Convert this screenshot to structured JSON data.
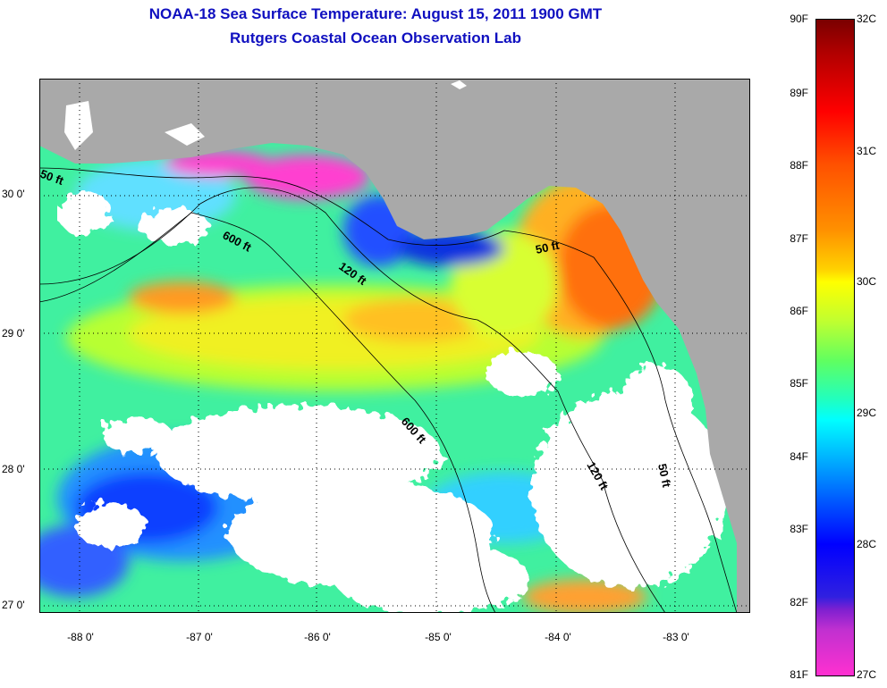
{
  "title": {
    "line1": "NOAA-18 Sea Surface Temperature:  August 15, 2011 1900 GMT",
    "line2": "Rutgers Coastal Ocean Observation Lab"
  },
  "axes": {
    "lat_labels": [
      "30 0'",
      "29 0'",
      "28 0'",
      "27 0'"
    ],
    "lon_labels": [
      "-88 0'",
      "-87 0'",
      "-86 0'",
      "-85 0'",
      "-84 0'",
      "-83 0'"
    ]
  },
  "colorbar": {
    "fahrenheit": [
      "90F",
      "89F",
      "88F",
      "87F",
      "86F",
      "85F",
      "84F",
      "83F",
      "82F",
      "81F"
    ],
    "celsius": [
      "32C",
      "31C",
      "30C",
      "29C",
      "28C",
      "27C"
    ]
  },
  "contours": {
    "fifty_a": "50 ft",
    "fifty_b": "50 ft",
    "fifty_c": "50 ft",
    "onetwenty_a": "120 ft",
    "onetwenty_b": "120 ft",
    "sixhundred_a": "600 ft",
    "sixhundred_b": "600 ft"
  },
  "colors": {
    "land": "#a9a9a9",
    "cloud": "#ffffff",
    "title_text": "#1010c0"
  }
}
